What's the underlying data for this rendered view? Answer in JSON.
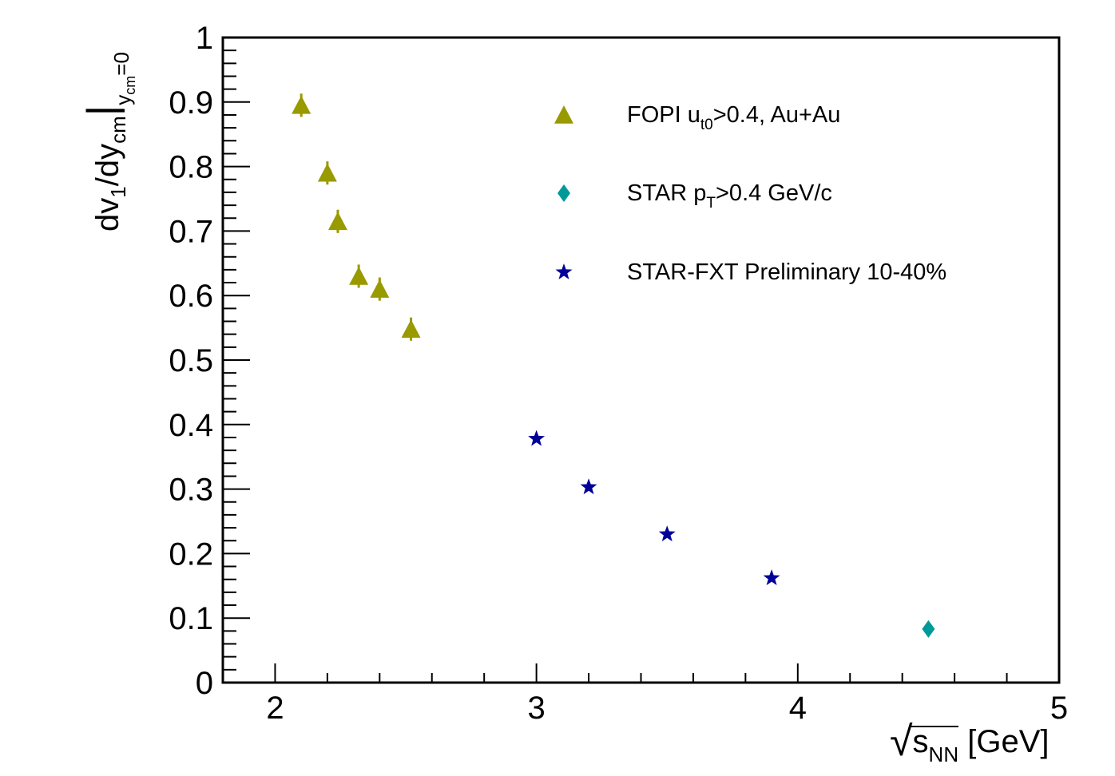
{
  "chart_data": {
    "type": "scatter",
    "xlim": [
      1.8,
      5.0
    ],
    "ylim": [
      0,
      1.0
    ],
    "x_ticks": [
      "2",
      "3",
      "4",
      "5"
    ],
    "y_ticks": [
      "0",
      "0.1",
      "0.2",
      "0.3",
      "0.4",
      "0.5",
      "0.6",
      "0.7",
      "0.8",
      "0.9",
      "1"
    ],
    "ylabel": {
      "main": "dv",
      "sub1": "1",
      "mid": "/dy",
      "sub2": "cm",
      "bar": "|",
      "sub3": "y",
      "subsub": "cm",
      "tail": "=0"
    },
    "xlabel": {
      "sqrt": "√",
      "s": "s",
      "sub": "NN",
      "unit": " [GeV]"
    },
    "legend_position": "top-right",
    "grid": false,
    "series": [
      {
        "name": "FOPI u>0.4, Au+Au",
        "legend": {
          "pre": "FOPI u",
          "sub": "t0",
          "post": ">0.4, Au+Au"
        },
        "marker": "triangle",
        "color": "#999900",
        "x": [
          2.1,
          2.2,
          2.24,
          2.32,
          2.4,
          2.52
        ],
        "y": [
          0.895,
          0.79,
          0.715,
          0.63,
          0.61,
          0.548
        ],
        "err": [
          0.018,
          0.018,
          0.018,
          0.018,
          0.018,
          0.018
        ]
      },
      {
        "name": "STAR p>0.4 GeV/c",
        "legend": {
          "pre": "STAR p",
          "sub": "T",
          "post": ">0.4 GeV/c"
        },
        "marker": "diamond",
        "color": "#009999",
        "x": [
          4.5
        ],
        "y": [
          0.083
        ],
        "err": [
          0
        ]
      },
      {
        "name": "STAR-FXT Preliminary 10-40%",
        "legend": {
          "pre": "STAR-FXT Preliminary 10-40%",
          "sub": "",
          "post": ""
        },
        "marker": "star",
        "color": "#000099",
        "x": [
          3.0,
          3.2,
          3.5,
          3.9
        ],
        "y": [
          0.378,
          0.303,
          0.23,
          0.162
        ],
        "err": [
          0,
          0,
          0,
          0
        ]
      }
    ]
  }
}
